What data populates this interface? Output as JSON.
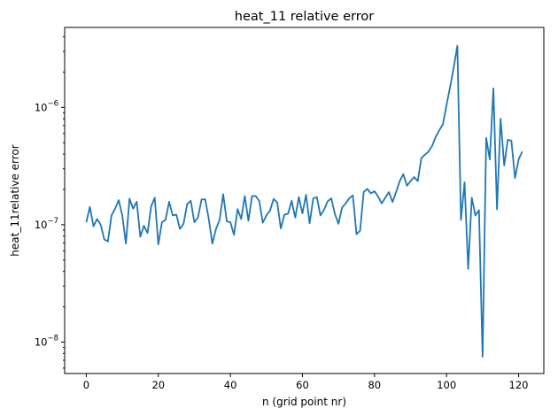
{
  "chart_data": {
    "type": "line",
    "title": "heat_11 relative error",
    "xlabel": "n (grid point nr)",
    "ylabel": "heat_11relative error",
    "y_scale": "log",
    "xlim": [
      -6,
      127
    ],
    "ylim": [
      5.4e-09,
      4.8e-06
    ],
    "x_ticks": [
      0,
      20,
      40,
      60,
      80,
      100,
      120
    ],
    "x_tick_labels": [
      "0",
      "20",
      "40",
      "60",
      "80",
      "100",
      "120"
    ],
    "y_major_ticks": [
      1e-08,
      1e-07,
      1e-06
    ],
    "y_tick_labels": [
      {
        "base": "10",
        "exp": "−8"
      },
      {
        "base": "10",
        "exp": "−7"
      },
      {
        "base": "10",
        "exp": "−6"
      }
    ],
    "grid": false,
    "legend": "none",
    "series": [
      {
        "color": "#1f77b4",
        "x": [
          0,
          1,
          2,
          3,
          4,
          5,
          6,
          7,
          8,
          9,
          10,
          11,
          12,
          13,
          14,
          15,
          16,
          17,
          18,
          19,
          20,
          21,
          22,
          23,
          24,
          25,
          26,
          27,
          28,
          29,
          30,
          31,
          32,
          33,
          34,
          35,
          36,
          37,
          38,
          39,
          40,
          41,
          42,
          43,
          44,
          45,
          46,
          47,
          48,
          49,
          50,
          51,
          52,
          53,
          54,
          55,
          56,
          57,
          58,
          59,
          60,
          61,
          62,
          63,
          64,
          65,
          66,
          67,
          68,
          69,
          70,
          71,
          72,
          73,
          74,
          75,
          76,
          77,
          78,
          79,
          80,
          81,
          82,
          83,
          84,
          85,
          86,
          87,
          88,
          89,
          90,
          91,
          92,
          93,
          94,
          95,
          96,
          97,
          98,
          99,
          100,
          101,
          102,
          103,
          104,
          105,
          106,
          107,
          108,
          109,
          110,
          111,
          112,
          113,
          114,
          115,
          116,
          117,
          118,
          119,
          120,
          121
        ],
        "values": [
          1.05e-07,
          1.42e-07,
          9.7e-08,
          1.12e-07,
          1e-07,
          7.5e-08,
          7.2e-08,
          1.2e-07,
          1.37e-07,
          1.62e-07,
          1.2e-07,
          6.9e-08,
          1.67e-07,
          1.37e-07,
          1.57e-07,
          7.9e-08,
          9.8e-08,
          8.5e-08,
          1.43e-07,
          1.7e-07,
          6.8e-08,
          1.05e-07,
          1.1e-07,
          1.57e-07,
          1.2e-07,
          1.22e-07,
          9.2e-08,
          1.02e-07,
          1.5e-07,
          1.6e-07,
          1.05e-07,
          1.15e-07,
          1.64e-07,
          1.65e-07,
          1.12e-07,
          6.9e-08,
          9.2e-08,
          1.1e-07,
          1.82e-07,
          1.07e-07,
          1.05e-07,
          8.2e-08,
          1.36e-07,
          1.12e-07,
          1.76e-07,
          1.08e-07,
          1.75e-07,
          1.76e-07,
          1.6e-07,
          1.04e-07,
          1.2e-07,
          1.32e-07,
          1.66e-07,
          1.55e-07,
          9.3e-08,
          1.22e-07,
          1.24e-07,
          1.6e-07,
          1.15e-07,
          1.72e-07,
          1.25e-07,
          1.8e-07,
          1.03e-07,
          1.68e-07,
          1.72e-07,
          1.2e-07,
          1.34e-07,
          1.58e-07,
          1.68e-07,
          1.24e-07,
          1.02e-07,
          1.4e-07,
          1.52e-07,
          1.68e-07,
          1.78e-07,
          8.3e-08,
          8.9e-08,
          1.9e-07,
          2.02e-07,
          1.85e-07,
          1.93e-07,
          1.74e-07,
          1.52e-07,
          1.7e-07,
          1.9e-07,
          1.56e-07,
          1.9e-07,
          2.35e-07,
          2.7e-07,
          2.15e-07,
          2.35e-07,
          2.55e-07,
          2.35e-07,
          3.7e-07,
          3.95e-07,
          4.2e-07,
          4.7e-07,
          5.6e-07,
          6.4e-07,
          7.2e-07,
          1.05e-06,
          1.5e-06,
          2.2e-06,
          3.35e-06,
          1.1e-07,
          2.3e-07,
          4.2e-08,
          1.7e-07,
          1.2e-07,
          1.33e-07,
          7.5e-09,
          5.5e-07,
          3.6e-07,
          1.45e-06,
          1.35e-07,
          8e-07,
          3.2e-07,
          5.3e-07,
          5.2e-07,
          2.5e-07,
          3.6e-07,
          4.2e-07
        ]
      }
    ]
  }
}
